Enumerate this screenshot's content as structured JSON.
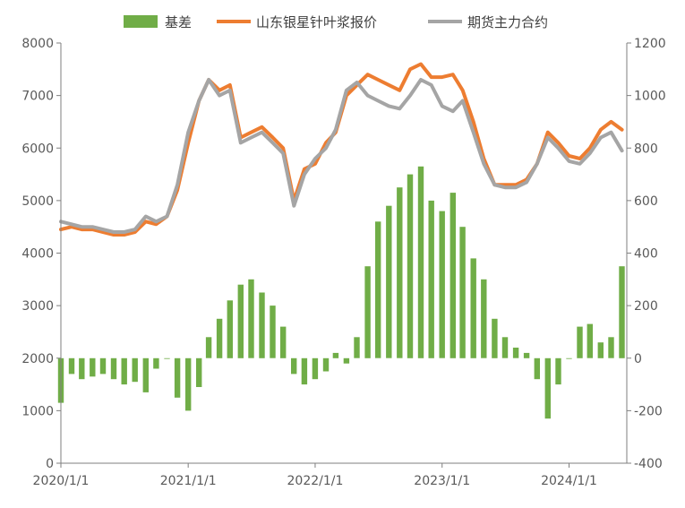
{
  "chart_data": {
    "type": "bar+line",
    "title": "",
    "xlabel": "",
    "ylabel_left": "",
    "ylabel_right": "",
    "x_ticks": [
      "2020/1/1",
      "2021/1/1",
      "2022/1/1",
      "2023/1/1",
      "2024/1/1"
    ],
    "x_range": [
      "2020-01-01",
      "2024-06-15"
    ],
    "y_left": {
      "range": [
        0,
        8000
      ],
      "ticks": [
        0,
        1000,
        2000,
        3000,
        4000,
        5000,
        6000,
        7000,
        8000
      ]
    },
    "y_right": {
      "range": [
        -400,
        1200
      ],
      "ticks": [
        -400,
        -200,
        0,
        200,
        400,
        600,
        800,
        1000,
        1200
      ]
    },
    "grid": false,
    "legend_position": "top",
    "colors": {
      "basis": "#70ad47",
      "spot": "#ed7d31",
      "futures": "#a5a5a5",
      "axis": "#7f7f7f"
    },
    "series": [
      {
        "name": "基差",
        "type": "bar",
        "axis": "right",
        "x": [
          "2020-01-01",
          "2020-02-01",
          "2020-03-01",
          "2020-04-01",
          "2020-05-01",
          "2020-06-01",
          "2020-07-01",
          "2020-08-01",
          "2020-09-01",
          "2020-10-01",
          "2020-11-01",
          "2020-12-01",
          "2021-01-01",
          "2021-02-01",
          "2021-03-01",
          "2021-04-01",
          "2021-05-01",
          "2021-06-01",
          "2021-07-01",
          "2021-08-01",
          "2021-09-01",
          "2021-10-01",
          "2021-11-01",
          "2021-12-01",
          "2022-01-01",
          "2022-02-01",
          "2022-03-01",
          "2022-04-01",
          "2022-05-01",
          "2022-06-01",
          "2022-07-01",
          "2022-08-01",
          "2022-09-01",
          "2022-10-01",
          "2022-11-01",
          "2022-12-01",
          "2023-01-01",
          "2023-02-01",
          "2023-03-01",
          "2023-04-01",
          "2023-05-01",
          "2023-06-01",
          "2023-07-01",
          "2023-08-01",
          "2023-09-01",
          "2023-10-01",
          "2023-11-01",
          "2023-12-01",
          "2024-01-01",
          "2024-02-01",
          "2024-03-01",
          "2024-04-01",
          "2024-05-01",
          "2024-06-01"
        ],
        "values": [
          -170,
          -60,
          -80,
          -70,
          -60,
          -80,
          -100,
          -90,
          -130,
          -40,
          0,
          -150,
          -200,
          -110,
          80,
          150,
          220,
          280,
          300,
          250,
          200,
          120,
          -60,
          -100,
          -80,
          -50,
          20,
          -20,
          80,
          350,
          520,
          580,
          650,
          700,
          730,
          600,
          560,
          630,
          500,
          380,
          300,
          150,
          80,
          40,
          20,
          -80,
          -230,
          -100,
          0,
          120,
          130,
          60,
          80,
          350
        ]
      },
      {
        "name": "山东银星针叶浆报价",
        "type": "line",
        "axis": "left",
        "x": [
          "2020-01-01",
          "2020-02-01",
          "2020-03-01",
          "2020-04-01",
          "2020-05-01",
          "2020-06-01",
          "2020-07-01",
          "2020-08-01",
          "2020-09-01",
          "2020-10-01",
          "2020-11-01",
          "2020-12-01",
          "2021-01-01",
          "2021-02-01",
          "2021-03-01",
          "2021-04-01",
          "2021-05-01",
          "2021-06-01",
          "2021-07-01",
          "2021-08-01",
          "2021-09-01",
          "2021-10-01",
          "2021-11-01",
          "2021-12-01",
          "2022-01-01",
          "2022-02-01",
          "2022-03-01",
          "2022-04-01",
          "2022-05-01",
          "2022-06-01",
          "2022-07-01",
          "2022-08-01",
          "2022-09-01",
          "2022-10-01",
          "2022-11-01",
          "2022-12-01",
          "2023-01-01",
          "2023-02-01",
          "2023-03-01",
          "2023-04-01",
          "2023-05-01",
          "2023-06-01",
          "2023-07-01",
          "2023-08-01",
          "2023-09-01",
          "2023-10-01",
          "2023-11-01",
          "2023-12-01",
          "2024-01-01",
          "2024-02-01",
          "2024-03-01",
          "2024-04-01",
          "2024-05-01",
          "2024-06-01"
        ],
        "values": [
          4450,
          4500,
          4450,
          4450,
          4400,
          4350,
          4350,
          4400,
          4600,
          4550,
          4700,
          5200,
          6100,
          6900,
          7300,
          7100,
          7200,
          6200,
          6300,
          6400,
          6200,
          6000,
          5000,
          5600,
          5700,
          6100,
          6300,
          7000,
          7200,
          7400,
          7300,
          7200,
          7100,
          7500,
          7600,
          7350,
          7350,
          7400,
          7100,
          6500,
          5800,
          5300,
          5300,
          5300,
          5400,
          5700,
          6300,
          6100,
          5850,
          5800,
          6000,
          6350,
          6500,
          6350
        ]
      },
      {
        "name": "期货主力合约",
        "type": "line",
        "axis": "left",
        "x": [
          "2020-01-01",
          "2020-02-01",
          "2020-03-01",
          "2020-04-01",
          "2020-05-01",
          "2020-06-01",
          "2020-07-01",
          "2020-08-01",
          "2020-09-01",
          "2020-10-01",
          "2020-11-01",
          "2020-12-01",
          "2021-01-01",
          "2021-02-01",
          "2021-03-01",
          "2021-04-01",
          "2021-05-01",
          "2021-06-01",
          "2021-07-01",
          "2021-08-01",
          "2021-09-01",
          "2021-10-01",
          "2021-11-01",
          "2021-12-01",
          "2022-01-01",
          "2022-02-01",
          "2022-03-01",
          "2022-04-01",
          "2022-05-01",
          "2022-06-01",
          "2022-07-01",
          "2022-08-01",
          "2022-09-01",
          "2022-10-01",
          "2022-11-01",
          "2022-12-01",
          "2023-01-01",
          "2023-02-01",
          "2023-03-01",
          "2023-04-01",
          "2023-05-01",
          "2023-06-01",
          "2023-07-01",
          "2023-08-01",
          "2023-09-01",
          "2023-10-01",
          "2023-11-01",
          "2023-12-01",
          "2024-01-01",
          "2024-02-01",
          "2024-03-01",
          "2024-04-01",
          "2024-05-01",
          "2024-06-01"
        ],
        "values": [
          4600,
          4550,
          4500,
          4500,
          4450,
          4400,
          4400,
          4450,
          4700,
          4600,
          4700,
          5300,
          6300,
          6900,
          7300,
          7000,
          7100,
          6100,
          6200,
          6300,
          6100,
          5900,
          4900,
          5500,
          5800,
          6000,
          6350,
          7100,
          7250,
          7000,
          6900,
          6800,
          6750,
          7000,
          7300,
          7200,
          6800,
          6700,
          6900,
          6300,
          5700,
          5300,
          5250,
          5250,
          5350,
          5700,
          6200,
          6000,
          5750,
          5700,
          5900,
          6200,
          6300,
          5950
        ]
      }
    ]
  }
}
